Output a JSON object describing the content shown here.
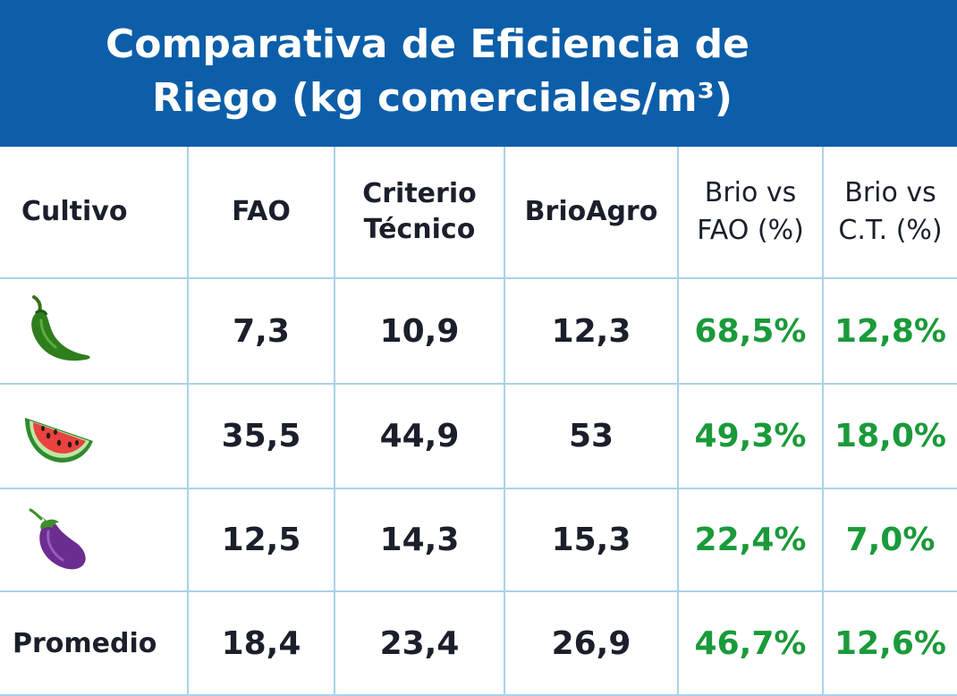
{
  "title": {
    "line1": "Comparativa de Eficiencia de",
    "line2": "Riego (kg comerciales/m³)"
  },
  "table": {
    "headers": [
      {
        "line1": "Cultivo",
        "line2": ""
      },
      {
        "line1": "FAO",
        "line2": ""
      },
      {
        "line1": "Criterio",
        "line2": "Técnico"
      },
      {
        "line1": "BrioAgro",
        "line2": ""
      },
      {
        "line1": "Brio vs",
        "line2": "FAO (%)"
      },
      {
        "line1": "Brio vs",
        "line2": "C.T. (%)"
      }
    ],
    "rows": [
      {
        "crop_icon": "chili-pepper-icon",
        "fao": "7,3",
        "ct": "10,9",
        "brio": "12,3",
        "vs_fao": "68,5%",
        "vs_ct": "12,8%"
      },
      {
        "crop_icon": "watermelon-icon",
        "fao": "35,5",
        "ct": "44,9",
        "brio": "53",
        "vs_fao": "49,3%",
        "vs_ct": "18,0%"
      },
      {
        "crop_icon": "eggplant-icon",
        "fao": "12,5",
        "ct": "14,3",
        "brio": "15,3",
        "vs_fao": "22,4%",
        "vs_ct": "7,0%"
      }
    ],
    "average": {
      "label": "Promedio",
      "fao": "18,4",
      "ct": "23,4",
      "brio": "26,9",
      "vs_fao": "46,7%",
      "vs_ct": "12,6%"
    }
  },
  "colors": {
    "title_bar": "#0d5ea8",
    "percent_green": "#1a9a3a",
    "grid_line": "#a9d2e8"
  }
}
